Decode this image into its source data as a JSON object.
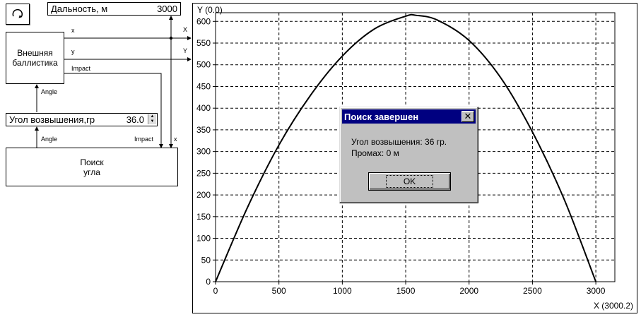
{
  "range_indicator": {
    "label": "Дальность, м",
    "value": "3000"
  },
  "ballistics_block": {
    "line1": "Внешняя",
    "line2": "баллистика"
  },
  "angle_control": {
    "label": "Угол возвышения,гр",
    "value": "36.0"
  },
  "search_block": {
    "line1": "Поиск",
    "line2": "угла"
  },
  "ports": {
    "ballistics_x": "x",
    "ballistics_y": "y",
    "ballistics_impact": "Impact",
    "ballistics_angle": "Angle",
    "search_angle": "Angle",
    "search_impact": "Impact",
    "search_x": "x",
    "plot_x": "X",
    "plot_y": "Y"
  },
  "plot": {
    "y_title": "Y (0.0)",
    "x_title": "X (3000.2)"
  },
  "chart_data": {
    "type": "line",
    "title": "",
    "xlabel": "X (3000.2)",
    "ylabel": "Y (0.0)",
    "xlim": [
      0,
      3150
    ],
    "ylim": [
      0,
      620
    ],
    "x_ticks": [
      0,
      500,
      1000,
      1500,
      2000,
      2500,
      3000
    ],
    "y_ticks": [
      0,
      50,
      100,
      150,
      200,
      250,
      300,
      350,
      400,
      450,
      500,
      550,
      600
    ],
    "grid": true,
    "series": [
      {
        "x": [
          0,
          250,
          500,
          750,
          1000,
          1250,
          1500,
          1580,
          1750,
          2000,
          2250,
          2500,
          2750,
          3000
        ],
        "y": [
          0,
          170,
          315,
          430,
          520,
          582,
          612,
          614,
          603,
          556,
          470,
          345,
          190,
          0
        ]
      }
    ]
  },
  "dialog": {
    "title": "Поиск завершен",
    "line1": "Угол возвышения: 36 гр.",
    "line2": "Промах: 0 м",
    "ok_label": "OK"
  },
  "colors": {
    "title_bar": "#000080",
    "dialog_bg": "#c0c0c0"
  },
  "icons": {
    "run": "refresh-icon",
    "close": "close-icon"
  }
}
